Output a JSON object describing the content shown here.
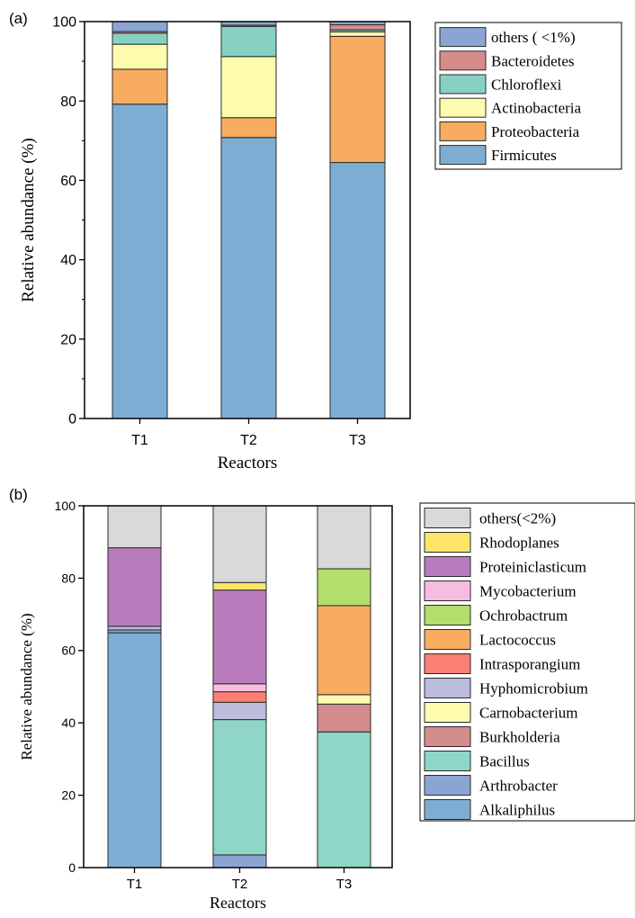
{
  "chart_data": [
    {
      "panel_label": "(a)",
      "type": "bar",
      "stacked": true,
      "categories": [
        "T1",
        "T2",
        "T3"
      ],
      "xlabel": "Reactors",
      "ylabel": "Relative abundance (%)",
      "ylim": [
        0,
        100
      ],
      "yticks": [
        "0",
        "20",
        "40",
        "60",
        "80",
        "100"
      ],
      "grid": false,
      "legend_position": "top-right",
      "series": [
        {
          "name": "Firmicutes",
          "color": "#7eadd3",
          "values": [
            79.2,
            70.8,
            64.5
          ]
        },
        {
          "name": "Proteobacteria",
          "color": "#f8ac60",
          "values": [
            8.8,
            5.0,
            31.8
          ]
        },
        {
          "name": "Actinobacteria",
          "color": "#fdfcae",
          "values": [
            6.3,
            15.4,
            1.1
          ]
        },
        {
          "name": "Chloroflexi",
          "color": "#86d1c2",
          "values": [
            2.8,
            7.6,
            0.5
          ]
        },
        {
          "name": "Bacteroidetes",
          "color": "#d48c8c",
          "values": [
            0.4,
            0.3,
            1.3
          ]
        },
        {
          "name": "others ( <1%)",
          "color": "#8ca4d4",
          "values": [
            2.5,
            0.9,
            0.8
          ]
        }
      ]
    },
    {
      "panel_label": "(b)",
      "type": "bar",
      "stacked": true,
      "categories": [
        "T1",
        "T2",
        "T3"
      ],
      "xlabel": "Reactors",
      "ylabel": "Relative abundance (%)",
      "ylim": [
        0,
        100
      ],
      "yticks": [
        "0",
        "20",
        "40",
        "60",
        "80",
        "100"
      ],
      "grid": false,
      "legend_position": "top-right",
      "series": [
        {
          "name": "Alkaliphilus",
          "color": "#7eadd3",
          "values": [
            64.9,
            0.0,
            0.0
          ]
        },
        {
          "name": "Arthrobacter",
          "color": "#8ca4d4",
          "values": [
            0.8,
            3.5,
            0.0
          ]
        },
        {
          "name": "Bacillus",
          "color": "#8fd6c6",
          "values": [
            0.0,
            37.4,
            37.5
          ]
        },
        {
          "name": "Burkholderia",
          "color": "#d48c8c",
          "values": [
            0.0,
            0.0,
            7.7
          ]
        },
        {
          "name": "Carnobacterium",
          "color": "#fdfcae",
          "values": [
            0.0,
            0.0,
            2.6
          ]
        },
        {
          "name": "Hyphomicrobium",
          "color": "#bcbcdd",
          "values": [
            1.0,
            4.8,
            0.0
          ]
        },
        {
          "name": "Intrasporangium",
          "color": "#fb7f72",
          "values": [
            0.0,
            2.9,
            0.0
          ]
        },
        {
          "name": "Lactococcus",
          "color": "#f8ac60",
          "values": [
            0.0,
            0.0,
            24.6
          ]
        },
        {
          "name": "Ochrobactrum",
          "color": "#b2de69",
          "values": [
            0.0,
            0.0,
            10.2
          ]
        },
        {
          "name": "Mycobacterium",
          "color": "#f6bde0",
          "values": [
            0.0,
            2.2,
            0.0
          ]
        },
        {
          "name": "Proteiniclasticum",
          "color": "#bb7cbd",
          "values": [
            21.7,
            25.9,
            0.0
          ]
        },
        {
          "name": "Rhodoplanes",
          "color": "#fee569",
          "values": [
            0.0,
            2.1,
            0.0
          ]
        },
        {
          "name": "others(<2%)",
          "color": "#d9d9d9",
          "values": [
            11.6,
            21.2,
            17.4
          ]
        }
      ]
    }
  ]
}
